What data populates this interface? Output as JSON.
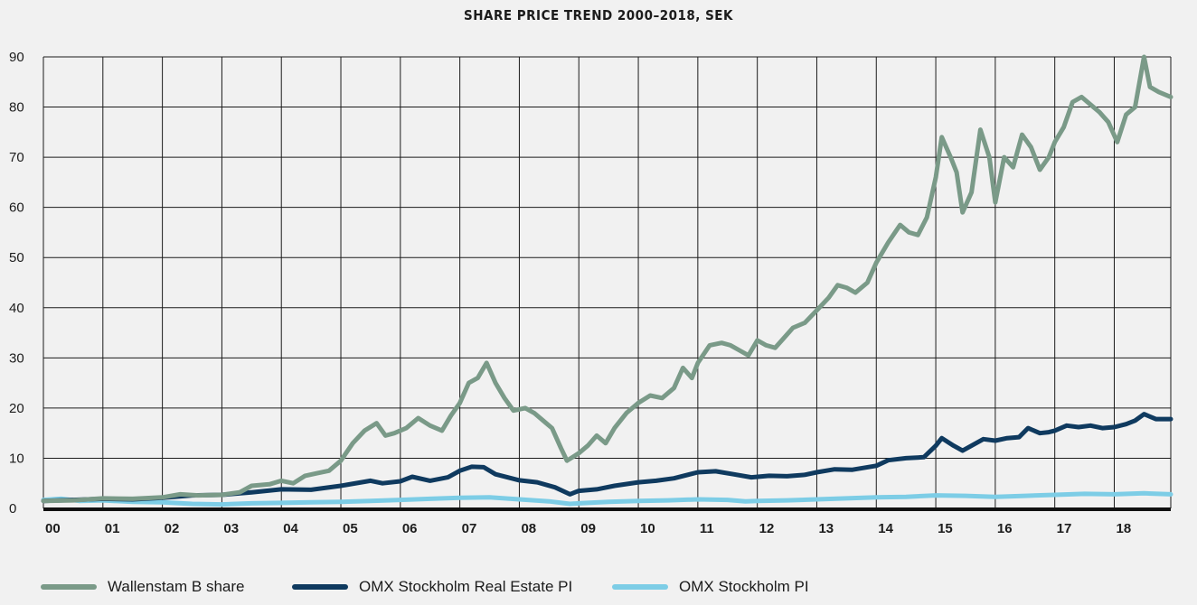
{
  "chart_data": {
    "type": "line",
    "title": "SHARE PRICE TREND 2000–2018, SEK",
    "xlabel": "",
    "ylabel": "",
    "x_ticks": [
      "00",
      "01",
      "02",
      "03",
      "04",
      "05",
      "06",
      "07",
      "08",
      "09",
      "10",
      "11",
      "12",
      "13",
      "14",
      "15",
      "16",
      "17",
      "18"
    ],
    "y_ticks": [
      "0",
      "10",
      "20",
      "30",
      "40",
      "50",
      "60",
      "70",
      "80",
      "90"
    ],
    "xlim": [
      2000.0,
      2018.95
    ],
    "ylim": [
      0,
      90
    ],
    "grid": true,
    "legend_position": "bottom",
    "series": [
      {
        "name": "Wallenstam B share",
        "color": "#7a9a88",
        "points": [
          [
            2000.0,
            1.5
          ],
          [
            2000.5,
            1.6
          ],
          [
            2001.0,
            2.0
          ],
          [
            2001.5,
            1.9
          ],
          [
            2002.0,
            2.2
          ],
          [
            2002.3,
            2.8
          ],
          [
            2002.6,
            2.6
          ],
          [
            2003.0,
            2.7
          ],
          [
            2003.3,
            3.2
          ],
          [
            2003.5,
            4.5
          ],
          [
            2003.8,
            4.8
          ],
          [
            2004.0,
            5.5
          ],
          [
            2004.2,
            5.0
          ],
          [
            2004.4,
            6.5
          ],
          [
            2004.6,
            7.0
          ],
          [
            2004.8,
            7.5
          ],
          [
            2005.0,
            9.5
          ],
          [
            2005.2,
            13.0
          ],
          [
            2005.4,
            15.5
          ],
          [
            2005.6,
            17.0
          ],
          [
            2005.75,
            14.5
          ],
          [
            2005.9,
            15.0
          ],
          [
            2006.1,
            16.0
          ],
          [
            2006.3,
            18.0
          ],
          [
            2006.5,
            16.5
          ],
          [
            2006.7,
            15.5
          ],
          [
            2006.85,
            18.5
          ],
          [
            2007.0,
            21.0
          ],
          [
            2007.15,
            25.0
          ],
          [
            2007.3,
            26.0
          ],
          [
            2007.45,
            29.0
          ],
          [
            2007.6,
            25.0
          ],
          [
            2007.75,
            22.0
          ],
          [
            2007.9,
            19.5
          ],
          [
            2008.1,
            20.0
          ],
          [
            2008.25,
            19.0
          ],
          [
            2008.4,
            17.5
          ],
          [
            2008.55,
            16.0
          ],
          [
            2008.7,
            12.0
          ],
          [
            2008.8,
            9.5
          ],
          [
            2009.0,
            11.0
          ],
          [
            2009.15,
            12.5
          ],
          [
            2009.3,
            14.5
          ],
          [
            2009.45,
            13.0
          ],
          [
            2009.6,
            16.0
          ],
          [
            2009.8,
            19.0
          ],
          [
            2010.0,
            21.0
          ],
          [
            2010.2,
            22.5
          ],
          [
            2010.4,
            22.0
          ],
          [
            2010.6,
            24.0
          ],
          [
            2010.75,
            28.0
          ],
          [
            2010.9,
            26.0
          ],
          [
            2011.0,
            29.0
          ],
          [
            2011.2,
            32.5
          ],
          [
            2011.4,
            33.0
          ],
          [
            2011.55,
            32.5
          ],
          [
            2011.7,
            31.5
          ],
          [
            2011.85,
            30.5
          ],
          [
            2012.0,
            33.5
          ],
          [
            2012.15,
            32.5
          ],
          [
            2012.3,
            32.0
          ],
          [
            2012.45,
            34.0
          ],
          [
            2012.6,
            36.0
          ],
          [
            2012.8,
            37.0
          ],
          [
            2013.0,
            39.5
          ],
          [
            2013.2,
            42.0
          ],
          [
            2013.35,
            44.5
          ],
          [
            2013.5,
            44.0
          ],
          [
            2013.65,
            43.0
          ],
          [
            2013.85,
            45.0
          ],
          [
            2014.0,
            49.0
          ],
          [
            2014.2,
            53.0
          ],
          [
            2014.4,
            56.5
          ],
          [
            2014.55,
            55.0
          ],
          [
            2014.7,
            54.5
          ],
          [
            2014.85,
            58.0
          ],
          [
            2015.0,
            66.0
          ],
          [
            2015.1,
            74.0
          ],
          [
            2015.25,
            70.0
          ],
          [
            2015.35,
            67.0
          ],
          [
            2015.45,
            59.0
          ],
          [
            2015.6,
            63.0
          ],
          [
            2015.75,
            75.5
          ],
          [
            2015.9,
            70.0
          ],
          [
            2016.0,
            61.0
          ],
          [
            2016.15,
            70.0
          ],
          [
            2016.3,
            68.0
          ],
          [
            2016.45,
            74.5
          ],
          [
            2016.6,
            72.0
          ],
          [
            2016.75,
            67.5
          ],
          [
            2016.9,
            70.0
          ],
          [
            2017.0,
            73.0
          ],
          [
            2017.15,
            76.0
          ],
          [
            2017.3,
            81.0
          ],
          [
            2017.45,
            82.0
          ],
          [
            2017.6,
            80.5
          ],
          [
            2017.75,
            79.0
          ],
          [
            2017.9,
            77.0
          ],
          [
            2018.05,
            73.0
          ],
          [
            2018.2,
            78.5
          ],
          [
            2018.35,
            80.0
          ],
          [
            2018.5,
            90.0
          ],
          [
            2018.6,
            84.0
          ],
          [
            2018.75,
            83.0
          ],
          [
            2018.95,
            82.0
          ]
        ]
      },
      {
        "name": "OMX Stockholm Real Estate PI",
        "color": "#0f3a5f",
        "points": [
          [
            2000.0,
            1.5
          ],
          [
            2000.5,
            1.7
          ],
          [
            2001.0,
            1.9
          ],
          [
            2001.5,
            1.8
          ],
          [
            2002.0,
            2.1
          ],
          [
            2002.5,
            2.6
          ],
          [
            2003.0,
            2.7
          ],
          [
            2003.5,
            3.2
          ],
          [
            2004.0,
            3.8
          ],
          [
            2004.5,
            3.7
          ],
          [
            2005.0,
            4.5
          ],
          [
            2005.5,
            5.5
          ],
          [
            2005.7,
            5.0
          ],
          [
            2006.0,
            5.4
          ],
          [
            2006.2,
            6.3
          ],
          [
            2006.5,
            5.5
          ],
          [
            2006.8,
            6.2
          ],
          [
            2007.0,
            7.5
          ],
          [
            2007.2,
            8.3
          ],
          [
            2007.4,
            8.2
          ],
          [
            2007.6,
            6.8
          ],
          [
            2007.8,
            6.2
          ],
          [
            2008.0,
            5.6
          ],
          [
            2008.3,
            5.2
          ],
          [
            2008.6,
            4.2
          ],
          [
            2008.85,
            2.8
          ],
          [
            2009.0,
            3.5
          ],
          [
            2009.3,
            3.8
          ],
          [
            2009.6,
            4.5
          ],
          [
            2010.0,
            5.2
          ],
          [
            2010.3,
            5.5
          ],
          [
            2010.6,
            6.0
          ],
          [
            2011.0,
            7.2
          ],
          [
            2011.3,
            7.4
          ],
          [
            2011.6,
            6.8
          ],
          [
            2011.9,
            6.2
          ],
          [
            2012.2,
            6.5
          ],
          [
            2012.5,
            6.4
          ],
          [
            2012.8,
            6.7
          ],
          [
            2013.0,
            7.2
          ],
          [
            2013.3,
            7.8
          ],
          [
            2013.6,
            7.7
          ],
          [
            2014.0,
            8.5
          ],
          [
            2014.2,
            9.6
          ],
          [
            2014.5,
            10.0
          ],
          [
            2014.8,
            10.2
          ],
          [
            2015.0,
            12.5
          ],
          [
            2015.1,
            14.0
          ],
          [
            2015.3,
            12.5
          ],
          [
            2015.45,
            11.5
          ],
          [
            2015.6,
            12.5
          ],
          [
            2015.8,
            13.8
          ],
          [
            2016.0,
            13.5
          ],
          [
            2016.2,
            14.0
          ],
          [
            2016.4,
            14.2
          ],
          [
            2016.55,
            16.0
          ],
          [
            2016.75,
            15.0
          ],
          [
            2016.9,
            15.2
          ],
          [
            2017.0,
            15.5
          ],
          [
            2017.2,
            16.5
          ],
          [
            2017.4,
            16.2
          ],
          [
            2017.6,
            16.5
          ],
          [
            2017.8,
            16.0
          ],
          [
            2018.0,
            16.2
          ],
          [
            2018.2,
            16.8
          ],
          [
            2018.35,
            17.5
          ],
          [
            2018.5,
            18.8
          ],
          [
            2018.7,
            17.8
          ],
          [
            2018.95,
            17.8
          ]
        ]
      },
      {
        "name": "OMX Stockholm PI",
        "color": "#7dcde6",
        "points": [
          [
            2000.0,
            1.7
          ],
          [
            2000.3,
            1.9
          ],
          [
            2000.6,
            1.5
          ],
          [
            2001.0,
            1.6
          ],
          [
            2001.5,
            1.3
          ],
          [
            2002.0,
            1.2
          ],
          [
            2002.5,
            0.9
          ],
          [
            2003.0,
            0.8
          ],
          [
            2003.5,
            1.0
          ],
          [
            2004.0,
            1.1
          ],
          [
            2004.5,
            1.2
          ],
          [
            2005.0,
            1.3
          ],
          [
            2005.5,
            1.5
          ],
          [
            2006.0,
            1.7
          ],
          [
            2006.5,
            1.9
          ],
          [
            2007.0,
            2.1
          ],
          [
            2007.5,
            2.2
          ],
          [
            2008.0,
            1.8
          ],
          [
            2008.5,
            1.4
          ],
          [
            2008.85,
            0.9
          ],
          [
            2009.0,
            1.0
          ],
          [
            2009.5,
            1.3
          ],
          [
            2010.0,
            1.5
          ],
          [
            2010.5,
            1.6
          ],
          [
            2011.0,
            1.8
          ],
          [
            2011.5,
            1.7
          ],
          [
            2011.8,
            1.4
          ],
          [
            2012.0,
            1.5
          ],
          [
            2012.5,
            1.6
          ],
          [
            2013.0,
            1.8
          ],
          [
            2013.5,
            2.0
          ],
          [
            2014.0,
            2.2
          ],
          [
            2014.5,
            2.3
          ],
          [
            2015.0,
            2.6
          ],
          [
            2015.5,
            2.5
          ],
          [
            2016.0,
            2.3
          ],
          [
            2016.5,
            2.5
          ],
          [
            2017.0,
            2.7
          ],
          [
            2017.5,
            2.9
          ],
          [
            2018.0,
            2.8
          ],
          [
            2018.5,
            3.0
          ],
          [
            2018.95,
            2.8
          ]
        ]
      }
    ]
  }
}
